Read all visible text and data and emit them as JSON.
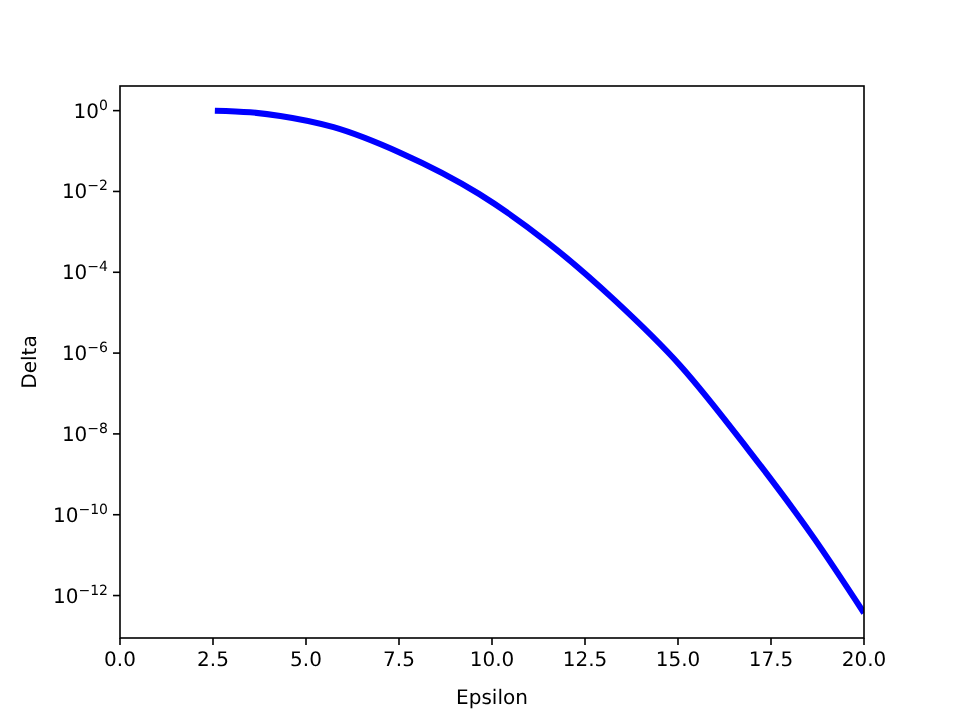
{
  "chart_data": {
    "type": "line",
    "xlabel": "Epsilon",
    "ylabel": "Delta",
    "log": "y",
    "xlim": [
      0,
      20
    ],
    "xticks": [
      {
        "value": 0,
        "label": "0.0"
      },
      {
        "value": 2.5,
        "label": "2.5"
      },
      {
        "value": 5,
        "label": "5.0"
      },
      {
        "value": 7.5,
        "label": "7.5"
      },
      {
        "value": 10,
        "label": "10.0"
      },
      {
        "value": 12.5,
        "label": "12.5"
      },
      {
        "value": 15,
        "label": "15.0"
      },
      {
        "value": 17.5,
        "label": "17.5"
      },
      {
        "value": 20,
        "label": "20.0"
      }
    ],
    "ylim": [
      8.9e-14,
      4.07
    ],
    "yticks": [
      {
        "value": 1,
        "label": "10$^{0}$"
      },
      {
        "value": 0.01,
        "label": "10$^{−2}$"
      },
      {
        "value": 0.0001,
        "label": "10$^{−4}$"
      },
      {
        "value": 1e-06,
        "label": "10$^{−6}$"
      },
      {
        "value": 1e-08,
        "label": "10$^{−8}$"
      },
      {
        "value": 1e-10,
        "label": "10$^{−10}$"
      },
      {
        "value": 1e-12,
        "label": "10$^{−12}$"
      }
    ],
    "grid": false,
    "marker": "none",
    "line_style": "solid",
    "series": [
      {
        "color": "#0000ff",
        "x": [
          2.55,
          3.5,
          4.31,
          5.74,
          7.53,
          9.65,
          11.48,
          13.28,
          15.07,
          16.86,
          18.66,
          20
        ],
        "values": [
          1.0,
          0.91,
          0.74,
          0.39,
          0.091,
          0.0087,
          0.00056,
          2.1e-05,
          4.8e-07,
          4.4e-09,
          2.6e-11,
          3.7e-13
        ]
      }
    ]
  }
}
